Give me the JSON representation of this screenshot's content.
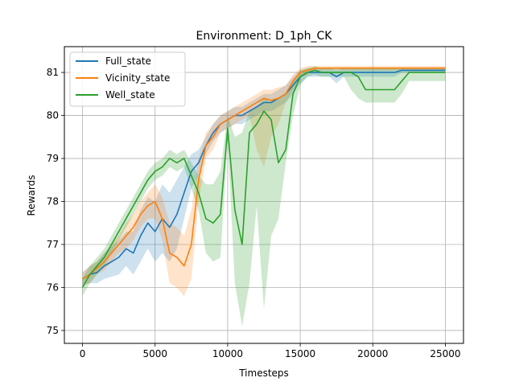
{
  "chart_data": {
    "type": "line",
    "title": "Environment: D_1ph_CK",
    "xlabel": "Timesteps",
    "ylabel": "Rewards",
    "xlim": [
      -1250,
      26250
    ],
    "ylim": [
      74.7,
      81.6
    ],
    "xticks": [
      0,
      5000,
      10000,
      15000,
      20000,
      25000
    ],
    "yticks": [
      75,
      76,
      77,
      78,
      79,
      80,
      81
    ],
    "grid": true,
    "legend_position": "top-left",
    "series": [
      {
        "name": "Full_state",
        "color": "#1f77b4",
        "band_opacity": 0.22,
        "x": [
          0,
          500,
          1000,
          1500,
          2000,
          2500,
          3000,
          3500,
          4000,
          4500,
          5000,
          5500,
          6000,
          6500,
          7000,
          7500,
          8000,
          8500,
          9000,
          9500,
          10000,
          10500,
          11000,
          11500,
          12000,
          12500,
          13000,
          13500,
          14000,
          14500,
          15000,
          15500,
          16000,
          16500,
          17000,
          17500,
          18000,
          18500,
          19000,
          19500,
          20000,
          20500,
          21000,
          21500,
          22000,
          22500,
          23000,
          23500,
          24000,
          24500,
          25000
        ],
        "y": [
          76.2,
          76.3,
          76.35,
          76.5,
          76.6,
          76.7,
          76.9,
          76.8,
          77.2,
          77.5,
          77.3,
          77.6,
          77.4,
          77.7,
          78.2,
          78.7,
          78.9,
          79.3,
          79.6,
          79.8,
          79.9,
          80.0,
          80.0,
          80.1,
          80.2,
          80.3,
          80.3,
          80.4,
          80.5,
          80.7,
          80.9,
          81.0,
          81.0,
          81.0,
          81.0,
          80.9,
          81.0,
          81.0,
          81.0,
          81.0,
          81.0,
          81.0,
          81.0,
          81.0,
          81.05,
          81.05,
          81.05,
          81.05,
          81.05,
          81.05,
          81.05
        ],
        "upper": [
          76.35,
          76.5,
          76.6,
          76.8,
          76.95,
          77.1,
          77.3,
          77.3,
          77.8,
          78.1,
          78.0,
          78.4,
          78.2,
          78.5,
          78.8,
          79.1,
          79.2,
          79.5,
          79.8,
          80.0,
          80.1,
          80.2,
          80.2,
          80.3,
          80.4,
          80.5,
          80.5,
          80.6,
          80.7,
          80.9,
          81.05,
          81.1,
          81.1,
          81.1,
          81.1,
          81.05,
          81.1,
          81.1,
          81.1,
          81.1,
          81.1,
          81.1,
          81.1,
          81.1,
          81.1,
          81.1,
          81.1,
          81.1,
          81.1,
          81.1,
          81.1
        ],
        "lower": [
          76.05,
          76.1,
          76.1,
          76.2,
          76.25,
          76.3,
          76.5,
          76.3,
          76.6,
          76.9,
          76.6,
          76.8,
          76.6,
          76.9,
          77.6,
          78.3,
          78.6,
          79.1,
          79.4,
          79.6,
          79.7,
          79.8,
          79.8,
          79.9,
          80.0,
          80.1,
          80.1,
          80.2,
          80.3,
          80.5,
          80.75,
          80.9,
          80.9,
          80.9,
          80.9,
          80.75,
          80.9,
          80.9,
          80.9,
          80.9,
          80.9,
          80.9,
          80.9,
          80.9,
          81.0,
          81.0,
          81.0,
          81.0,
          81.0,
          81.0,
          81.0
        ]
      },
      {
        "name": "Vicinity_state",
        "color": "#ff7f0e",
        "band_opacity": 0.22,
        "x": [
          0,
          500,
          1000,
          1500,
          2000,
          2500,
          3000,
          3500,
          4000,
          4500,
          5000,
          5500,
          6000,
          6500,
          7000,
          7500,
          8000,
          8500,
          9000,
          9500,
          10000,
          10500,
          11000,
          11500,
          12000,
          12500,
          13000,
          13500,
          14000,
          14500,
          15000,
          15500,
          16000,
          16500,
          17000,
          17500,
          18000,
          18500,
          19000,
          19500,
          20000,
          20500,
          21000,
          21500,
          22000,
          22500,
          23000,
          23500,
          24000,
          24500,
          25000
        ],
        "y": [
          76.2,
          76.3,
          76.45,
          76.6,
          76.8,
          77.0,
          77.2,
          77.4,
          77.7,
          77.9,
          78.0,
          77.6,
          76.8,
          76.7,
          76.5,
          77.0,
          78.5,
          79.3,
          79.5,
          79.8,
          79.9,
          80.0,
          80.1,
          80.2,
          80.3,
          80.4,
          80.35,
          80.4,
          80.5,
          80.8,
          81.0,
          81.05,
          81.1,
          81.1,
          81.1,
          81.1,
          81.1,
          81.1,
          81.1,
          81.1,
          81.1,
          81.1,
          81.1,
          81.1,
          81.1,
          81.1,
          81.1,
          81.1,
          81.1,
          81.1,
          81.1
        ],
        "upper": [
          76.35,
          76.5,
          76.6,
          76.8,
          77.0,
          77.2,
          77.5,
          77.7,
          78.0,
          78.2,
          78.4,
          78.1,
          77.5,
          77.4,
          77.2,
          77.8,
          79.0,
          79.6,
          79.8,
          80.0,
          80.1,
          80.2,
          80.3,
          80.4,
          80.5,
          80.6,
          80.6,
          80.65,
          80.7,
          80.95,
          81.1,
          81.15,
          81.15,
          81.15,
          81.15,
          81.15,
          81.15,
          81.15,
          81.15,
          81.15,
          81.15,
          81.15,
          81.15,
          81.15,
          81.15,
          81.15,
          81.15,
          81.15,
          81.15,
          81.15,
          81.15
        ],
        "lower": [
          76.05,
          76.1,
          76.3,
          76.4,
          76.6,
          76.8,
          76.9,
          77.1,
          77.4,
          77.6,
          77.6,
          77.1,
          76.1,
          76.0,
          75.8,
          76.2,
          78.0,
          79.0,
          79.2,
          79.6,
          79.7,
          79.8,
          79.9,
          80.0,
          79.2,
          78.8,
          79.5,
          79.8,
          80.3,
          80.6,
          80.9,
          80.95,
          81.05,
          81.05,
          81.05,
          81.05,
          81.05,
          81.05,
          81.05,
          81.05,
          81.05,
          81.05,
          81.05,
          81.05,
          81.05,
          81.05,
          81.05,
          81.05,
          81.05,
          81.05,
          81.05
        ]
      },
      {
        "name": "Well_state",
        "color": "#2ca02c",
        "band_opacity": 0.24,
        "x": [
          0,
          500,
          1000,
          1500,
          2000,
          2500,
          3000,
          3500,
          4000,
          4500,
          5000,
          5500,
          6000,
          6500,
          7000,
          7500,
          8000,
          8500,
          9000,
          9500,
          10000,
          10500,
          11000,
          11500,
          12000,
          12500,
          13000,
          13500,
          14000,
          14500,
          15000,
          15500,
          16000,
          16500,
          17000,
          17500,
          18000,
          18500,
          19000,
          19500,
          20000,
          20500,
          21000,
          21500,
          22000,
          22500,
          23000,
          23500,
          24000,
          24500,
          25000
        ],
        "y": [
          76.0,
          76.3,
          76.5,
          76.7,
          77.0,
          77.3,
          77.6,
          77.9,
          78.2,
          78.5,
          78.7,
          78.8,
          79.0,
          78.9,
          79.0,
          78.6,
          78.2,
          77.6,
          77.5,
          77.7,
          79.7,
          77.8,
          77.0,
          79.6,
          79.8,
          80.1,
          79.9,
          78.9,
          79.2,
          80.5,
          80.9,
          81.0,
          81.05,
          81.0,
          81.0,
          81.0,
          81.0,
          81.0,
          80.9,
          80.6,
          80.6,
          80.6,
          80.6,
          80.6,
          80.8,
          81.0,
          81.0,
          81.0,
          81.0,
          81.0,
          81.0
        ],
        "upper": [
          76.2,
          76.5,
          76.7,
          76.9,
          77.2,
          77.5,
          77.8,
          78.1,
          78.4,
          78.7,
          78.9,
          79.0,
          79.2,
          79.1,
          79.2,
          78.9,
          78.6,
          78.4,
          78.4,
          78.7,
          80.0,
          79.5,
          79.6,
          80.1,
          80.2,
          80.4,
          80.3,
          80.4,
          80.5,
          80.8,
          81.05,
          81.1,
          81.15,
          81.1,
          81.1,
          81.1,
          81.1,
          81.1,
          81.1,
          81.1,
          81.1,
          81.1,
          81.1,
          81.1,
          81.1,
          81.1,
          81.1,
          81.1,
          81.1,
          81.1,
          81.1
        ],
        "lower": [
          75.8,
          76.1,
          76.3,
          76.5,
          76.8,
          77.1,
          77.4,
          77.7,
          78.0,
          78.3,
          78.5,
          78.6,
          78.8,
          78.7,
          78.8,
          78.3,
          77.8,
          76.8,
          76.6,
          76.7,
          79.4,
          76.1,
          75.1,
          76.1,
          77.9,
          75.5,
          77.2,
          77.6,
          78.9,
          80.0,
          80.7,
          80.9,
          80.95,
          80.9,
          80.9,
          80.9,
          80.9,
          80.6,
          80.4,
          80.3,
          80.3,
          80.3,
          80.3,
          80.3,
          80.5,
          80.8,
          80.8,
          80.8,
          80.8,
          80.8,
          80.8
        ]
      }
    ]
  }
}
